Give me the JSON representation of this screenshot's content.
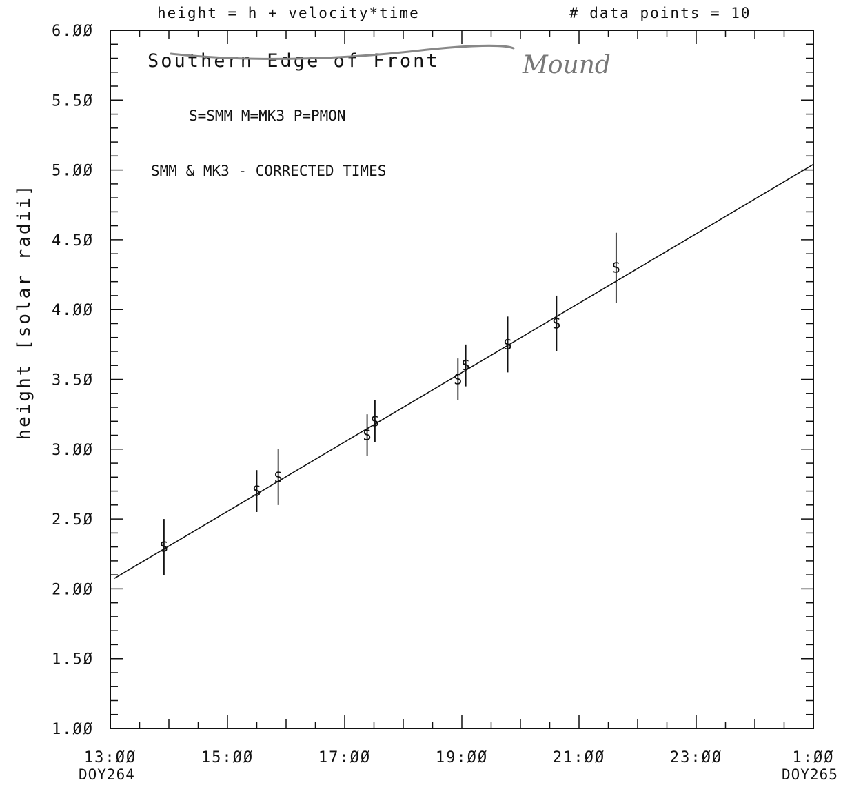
{
  "chart_data": {
    "type": "scatter",
    "header_left": "height = h + velocity*time",
    "header_right": "# data points =  10",
    "ylabel": "height [solar radii]",
    "ylim": [
      1.0,
      6.0
    ],
    "xlim_hours": [
      13,
      25
    ],
    "yticks": [
      "1.00",
      "1.50",
      "2.00",
      "2.50",
      "3.00",
      "3.50",
      "4.00",
      "4.50",
      "5.00",
      "5.50",
      "6.00"
    ],
    "xticks": [
      "13:00",
      "15:00",
      "17:00",
      "19:00",
      "21:00",
      "23:00",
      "1:00"
    ],
    "x_day_labels": {
      "start": "DOY264",
      "end": "DOY265"
    },
    "annotations": {
      "title": "Southern Edge of Front",
      "legend": "S=SMM  M=MK3  P=PMON",
      "note": "SMM & MK3 - CORRECTED TIMES",
      "handwritten": "Mound"
    },
    "marker": "S",
    "series": [
      {
        "points": [
          {
            "t": "13:55",
            "y": 2.3,
            "err": 0.2
          },
          {
            "t": "15:30",
            "y": 2.7,
            "err": 0.15
          },
          {
            "t": "15:52",
            "y": 2.8,
            "err": 0.2
          },
          {
            "t": "17:23",
            "y": 3.1,
            "err": 0.15
          },
          {
            "t": "17:31",
            "y": 3.2,
            "err": 0.15
          },
          {
            "t": "18:56",
            "y": 3.5,
            "err": 0.15
          },
          {
            "t": "19:04",
            "y": 3.6,
            "err": 0.15
          },
          {
            "t": "19:47",
            "y": 3.75,
            "err": 0.2
          },
          {
            "t": "20:37",
            "y": 3.9,
            "err": 0.2
          },
          {
            "t": "21:38",
            "y": 4.3,
            "err": 0.25
          }
        ]
      }
    ],
    "fit_line": {
      "from": {
        "t": "13:00",
        "y": 2.08
      },
      "to": {
        "t": "1:00",
        "y": 5.04
      }
    }
  }
}
